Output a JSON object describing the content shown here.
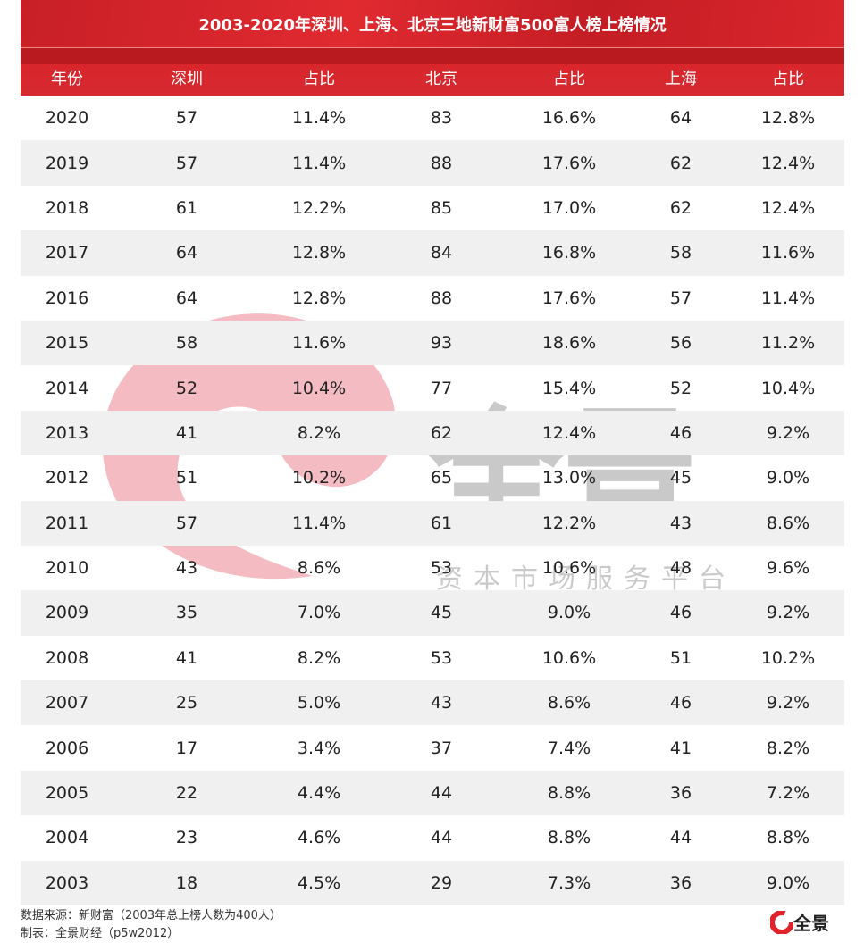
{
  "chart_data": {
    "type": "table",
    "title": "2003-2020年深圳、上海、北京三地新财富500富人榜上榜情况",
    "columns": [
      "年份",
      "深圳",
      "占比",
      "北京",
      "占比",
      "上海",
      "占比"
    ],
    "rows": [
      [
        "2020",
        "57",
        "11.4%",
        "83",
        "16.6%",
        "64",
        "12.8%"
      ],
      [
        "2019",
        "57",
        "11.4%",
        "88",
        "17.6%",
        "62",
        "12.4%"
      ],
      [
        "2018",
        "61",
        "12.2%",
        "85",
        "17.0%",
        "62",
        "12.4%"
      ],
      [
        "2017",
        "64",
        "12.8%",
        "84",
        "16.8%",
        "58",
        "11.6%"
      ],
      [
        "2016",
        "64",
        "12.8%",
        "88",
        "17.6%",
        "57",
        "11.4%"
      ],
      [
        "2015",
        "58",
        "11.6%",
        "93",
        "18.6%",
        "56",
        "11.2%"
      ],
      [
        "2014",
        "52",
        "10.4%",
        "77",
        "15.4%",
        "52",
        "10.4%"
      ],
      [
        "2013",
        "41",
        "8.2%",
        "62",
        "12.4%",
        "46",
        "9.2%"
      ],
      [
        "2012",
        "51",
        "10.2%",
        "65",
        "13.0%",
        "45",
        "9.0%"
      ],
      [
        "2011",
        "57",
        "11.4%",
        "61",
        "12.2%",
        "43",
        "8.6%"
      ],
      [
        "2010",
        "43",
        "8.6%",
        "53",
        "10.6%",
        "48",
        "9.6%"
      ],
      [
        "2009",
        "35",
        "7.0%",
        "45",
        "9.0%",
        "46",
        "9.2%"
      ],
      [
        "2008",
        "41",
        "8.2%",
        "53",
        "10.6%",
        "51",
        "10.2%"
      ],
      [
        "2007",
        "25",
        "5.0%",
        "43",
        "8.6%",
        "46",
        "9.2%"
      ],
      [
        "2006",
        "17",
        "3.4%",
        "37",
        "7.4%",
        "41",
        "8.2%"
      ],
      [
        "2005",
        "22",
        "4.4%",
        "44",
        "8.8%",
        "36",
        "7.2%"
      ],
      [
        "2004",
        "23",
        "4.6%",
        "44",
        "8.8%",
        "44",
        "8.8%"
      ],
      [
        "2003",
        "18",
        "4.5%",
        "29",
        "7.3%",
        "36",
        "9.0%"
      ]
    ]
  },
  "footer": {
    "source": "数据来源：新财富（2003年总上榜人数为400人）",
    "maker": "制表：全景财经（p5w2012）"
  },
  "watermark": {
    "brand": "全景",
    "tagline": "资本市场服务平台"
  },
  "colors": {
    "header": "#d52a30",
    "alt_row": "#f0f0f0"
  }
}
